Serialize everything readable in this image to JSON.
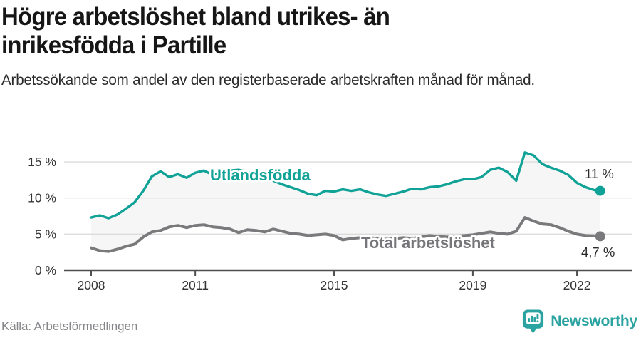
{
  "header": {
    "title": "Högre arbetslöshet bland utrikes- än inrikesfödda i Partille",
    "subtitle": "Arbetssökande som andel av den registerbaserade arbetskraften månad för månad."
  },
  "footer": {
    "source": "Källa: Arbetsförmedlingen",
    "brand": "Newsworthy",
    "logo_icon": "bar-chart-speech-bubble-icon"
  },
  "colors": {
    "accent_teal": "#10a296",
    "line_gray": "#7a7a7d",
    "band_fill": "#f5f5f5",
    "gridline": "#dcdcdc",
    "axis": "#4f4f4f",
    "tick_text": "#343434",
    "title_text": "#161616",
    "source_text": "#85858a",
    "brand_teal": "#2ba3a0"
  },
  "chart_data": {
    "type": "line",
    "title": "Högre arbetslöshet bland utrikes- än inrikesfödda i Partille",
    "subtitle": "Arbetssökande som andel av den registerbaserade arbetskraften månad för månad.",
    "xlabel": "",
    "ylabel": "",
    "unit": "%",
    "grid": "horizontal-light",
    "legend": "inline-series-labels",
    "xlim": [
      2007.22,
      2023.6
    ],
    "ylim": [
      0,
      17.6
    ],
    "xtick_values": [
      2008,
      2011,
      2015,
      2019,
      2022
    ],
    "xtick_labels": [
      "2008",
      "2011",
      "2015",
      "2019",
      "2022"
    ],
    "ytick_values": [
      0,
      5,
      10,
      15
    ],
    "ytick_labels": [
      "0 %",
      "5 %",
      "10 %",
      "15 %"
    ],
    "band_between_series_fill": "#f5f5f5",
    "x": [
      2008,
      2008.25,
      2008.5,
      2008.75,
      2009,
      2009.25,
      2009.5,
      2009.75,
      2010,
      2010.25,
      2010.5,
      2010.75,
      2011,
      2011.25,
      2011.5,
      2011.75,
      2012,
      2012.25,
      2012.5,
      2012.75,
      2013,
      2013.25,
      2013.5,
      2013.75,
      2014,
      2014.25,
      2014.5,
      2014.75,
      2015,
      2015.25,
      2015.5,
      2015.75,
      2016,
      2016.25,
      2016.5,
      2016.75,
      2017,
      2017.25,
      2017.5,
      2017.75,
      2018,
      2018.25,
      2018.5,
      2018.75,
      2019,
      2019.25,
      2019.5,
      2019.75,
      2020,
      2020.25,
      2020.5,
      2020.75,
      2021,
      2021.25,
      2021.5,
      2021.75,
      2022,
      2022.25,
      2022.5,
      2022.67
    ],
    "series": [
      {
        "name": "Utlandsfödda",
        "color": "#10a296",
        "end_label": "11 %",
        "end_value": 11,
        "values": [
          7.3,
          7.6,
          7.2,
          7.7,
          8.5,
          9.4,
          11.0,
          13.0,
          13.7,
          12.9,
          13.3,
          12.8,
          13.5,
          13.8,
          13.2,
          13.5,
          13.8,
          13.9,
          13.6,
          13.2,
          12.9,
          12.4,
          11.9,
          11.5,
          11.1,
          10.6,
          10.4,
          11.0,
          10.9,
          11.2,
          11.0,
          11.2,
          10.8,
          10.5,
          10.3,
          10.6,
          10.9,
          11.3,
          11.2,
          11.5,
          11.6,
          11.9,
          12.3,
          12.6,
          12.6,
          12.9,
          13.9,
          14.2,
          13.6,
          12.4,
          16.3,
          15.9,
          14.7,
          14.2,
          13.8,
          13.2,
          12.1,
          11.5,
          11.1,
          11.0
        ]
      },
      {
        "name": "Total arbetslöshet",
        "color": "#7a7a7d",
        "end_label": "4,7 %",
        "end_value": 4.7,
        "values": [
          3.1,
          2.7,
          2.6,
          2.9,
          3.3,
          3.6,
          4.6,
          5.3,
          5.5,
          6.0,
          6.2,
          5.9,
          6.2,
          6.3,
          6.0,
          5.9,
          5.7,
          5.2,
          5.6,
          5.5,
          5.3,
          5.7,
          5.4,
          5.1,
          5.0,
          4.8,
          4.9,
          5.0,
          4.8,
          4.2,
          4.4,
          4.5,
          4.5,
          4.4,
          4.3,
          4.4,
          4.5,
          4.4,
          4.6,
          4.8,
          4.7,
          4.6,
          4.7,
          4.8,
          4.9,
          5.1,
          5.3,
          5.1,
          5.0,
          5.4,
          7.3,
          6.8,
          6.4,
          6.3,
          5.9,
          5.4,
          5.0,
          4.8,
          4.75,
          4.7
        ]
      }
    ]
  }
}
